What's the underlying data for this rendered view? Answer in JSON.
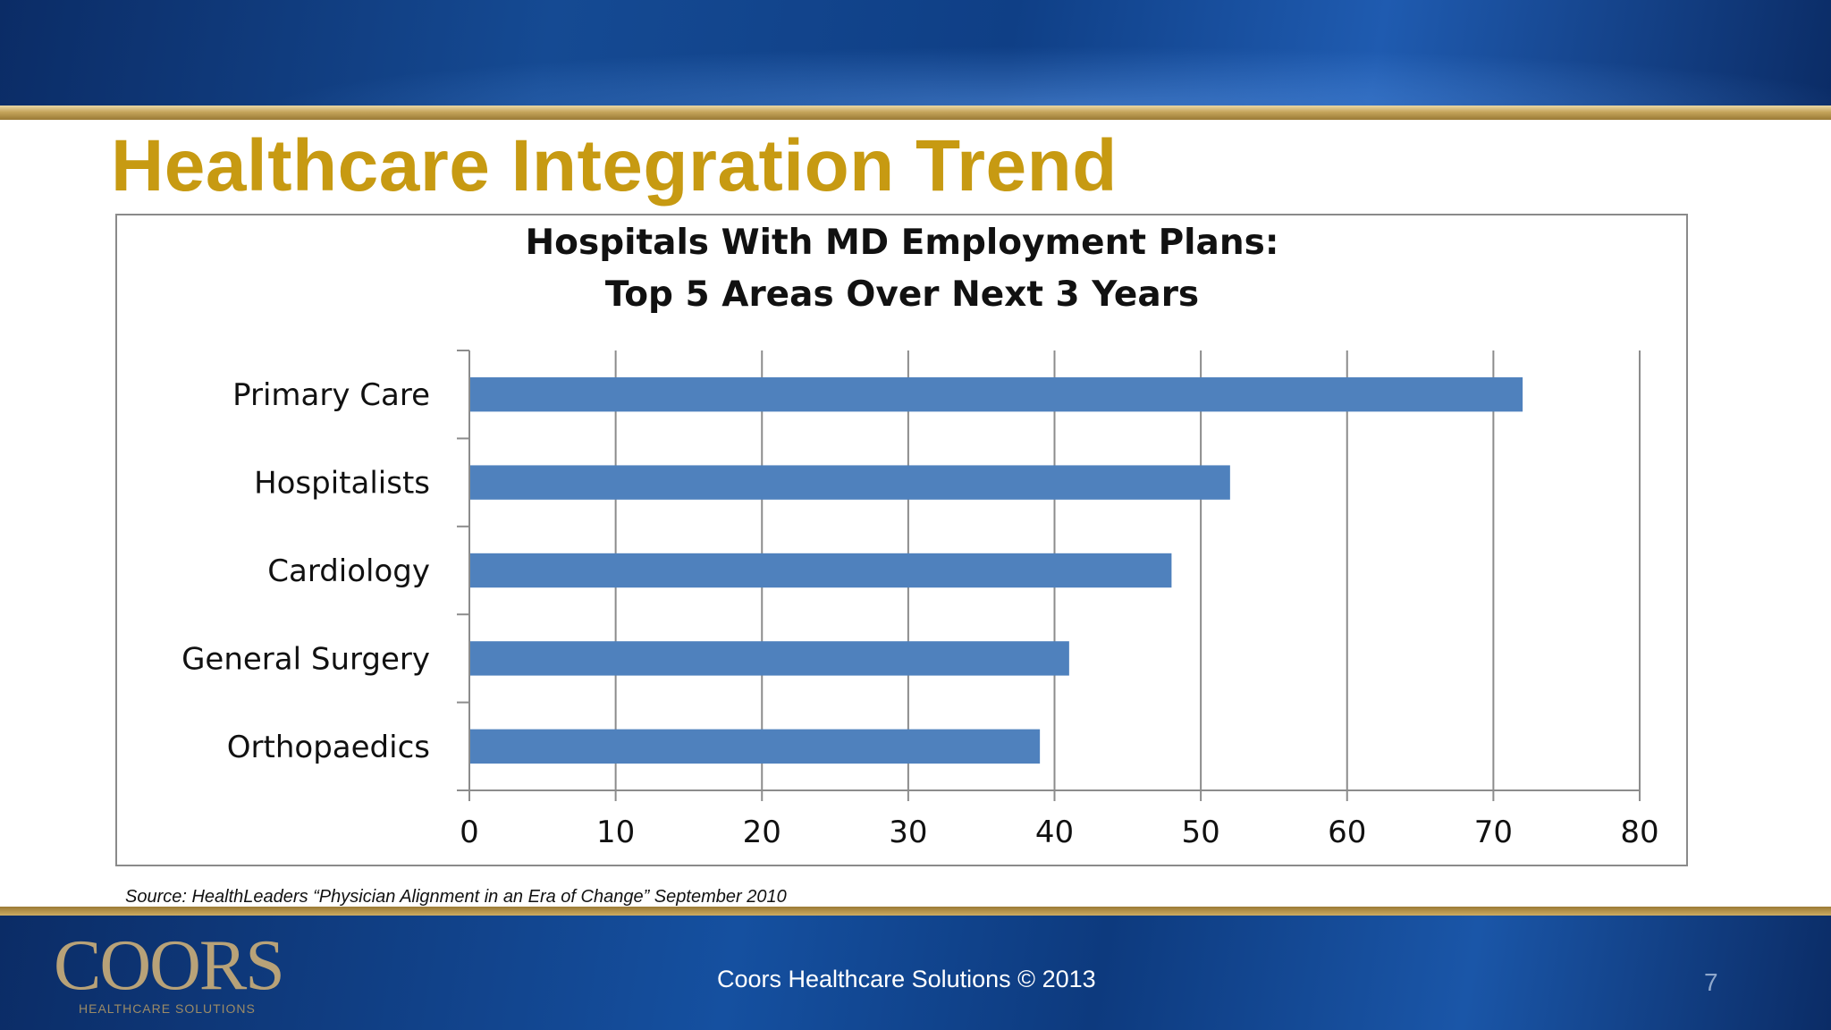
{
  "slide": {
    "title": "Healthcare Integration Trend",
    "source": "Source: HealthLeaders “Physician Alignment in an Era of Change” September 2010",
    "footer": "Coors Healthcare Solutions © 2013",
    "page_number": "7",
    "logo": {
      "word": "COORS",
      "subtitle": "HEALTHCARE SOLUTIONS"
    }
  },
  "colors": {
    "title": "#c79a12",
    "bar": "#4f81bd",
    "band": "#0f3f86",
    "gold": "#c6a55c"
  },
  "chart_data": {
    "type": "bar",
    "orientation": "horizontal",
    "title_lines": [
      "Hospitals With MD Employment Plans:",
      "Top 5 Areas Over Next 3 Years"
    ],
    "categories": [
      "Primary Care",
      "Hospitalists",
      "Cardiology",
      "General Surgery",
      "Orthopaedics"
    ],
    "values": [
      72,
      52,
      48,
      41,
      39
    ],
    "xlim": [
      0,
      80
    ],
    "xticks": [
      0,
      10,
      20,
      30,
      40,
      50,
      60,
      70,
      80
    ],
    "xlabel": "",
    "ylabel": "",
    "grid": "vertical",
    "legend": "none"
  }
}
